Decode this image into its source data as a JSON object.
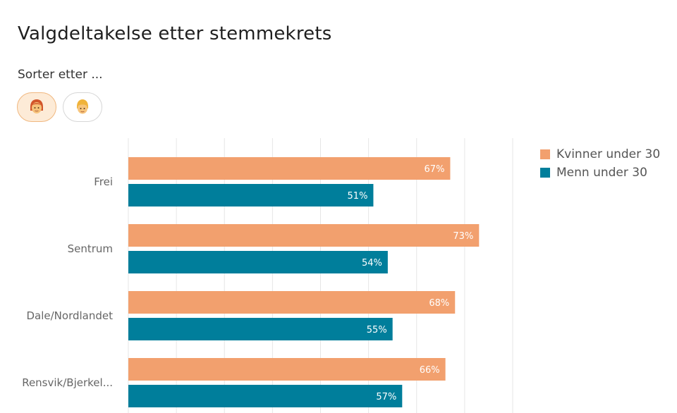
{
  "title": "Valgdeltakelse etter stemmekrets",
  "sort": {
    "label": "Sorter etter ...",
    "options": [
      {
        "icon": "woman-emoji-icon",
        "active": true
      },
      {
        "icon": "man-emoji-icon",
        "active": false
      }
    ]
  },
  "colors": {
    "women": "#f2a06e",
    "men": "#007e9b",
    "grid": "#e6e6e6"
  },
  "chart_data": {
    "type": "bar",
    "orientation": "horizontal",
    "categories": [
      "Frei",
      "Sentrum",
      "Dale/Nordlandet",
      "Rensvik/Bjerkel..."
    ],
    "series": [
      {
        "name": "Kvinner under 30",
        "values": [
          67,
          73,
          68,
          66
        ],
        "labels": [
          "67%",
          "73%",
          "68%",
          "66%"
        ]
      },
      {
        "name": "Menn under 30",
        "values": [
          51,
          54,
          55,
          57
        ],
        "labels": [
          "51%",
          "54%",
          "55%",
          "57%"
        ]
      }
    ],
    "xlim": [
      0,
      80
    ],
    "grid": true,
    "legend_position": "right"
  }
}
